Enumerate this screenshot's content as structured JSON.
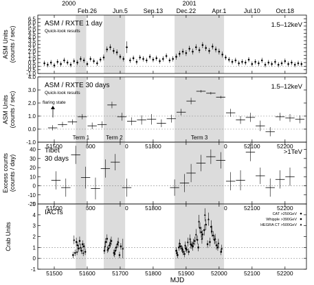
{
  "x_axis": {
    "label": "MJD",
    "ticks": [
      51500,
      51600,
      51700,
      51800,
      51900,
      52000,
      52100,
      52200
    ],
    "top_year_labels": [
      {
        "text": "2000",
        "mjd": 51544
      },
      {
        "text": "2001",
        "mjd": 51910
      }
    ],
    "top_date_labels": [
      {
        "text": "Feb.26",
        "mjd": 51600
      },
      {
        "text": "Jun.5",
        "mjd": 51700
      },
      {
        "text": "Sep.13",
        "mjd": 51800
      },
      {
        "text": "Dec.22",
        "mjd": 51900
      },
      {
        "text": "Apr.1",
        "mjd": 52000
      },
      {
        "text": "Jul.10",
        "mjd": 52100
      },
      {
        "text": "Oct.18",
        "mjd": 52200
      }
    ]
  },
  "chart_data": [
    {
      "type": "scatter",
      "id": "asm1",
      "ylabel": "ASM Units (counts / sec)",
      "title": "ASM / RXTE  1 day",
      "subtitle": "Quick-look results",
      "energy": "1.5–12keV",
      "xlim": [
        51450,
        52265
      ],
      "ylim": [
        -1.0,
        7.0
      ],
      "yticks": [
        -1.0,
        -0.5,
        0.0,
        0.5,
        1.0,
        1.5,
        2.0,
        2.5,
        3.0,
        3.5,
        4.0,
        4.5,
        5.0,
        5.5,
        6.0,
        6.5
      ],
      "ytick_labels": [
        "-1.0",
        "-0.5",
        "0.0",
        "0.5",
        "1.0",
        "1.5",
        "2.0",
        "2.5",
        "3.0",
        "3.5",
        "4.0",
        "4.5",
        "5.0",
        "5.5",
        "6.0",
        "6.5"
      ],
      "shaded_intervals": [
        [
          51565,
          51597
        ],
        [
          51650,
          51715
        ],
        [
          51865,
          52015
        ]
      ],
      "series": [
        {
          "name": "",
          "x": [
            51470,
            51480,
            51490,
            51500,
            51510,
            51520,
            51530,
            51540,
            51550,
            51560,
            51570,
            51580,
            51590,
            51600,
            51610,
            51620,
            51630,
            51640,
            51650,
            51660,
            51670,
            51680,
            51690,
            51700,
            51710,
            51720,
            51730,
            51740,
            51750,
            51760,
            51770,
            51780,
            51790,
            51800,
            51810,
            51820,
            51830,
            51840,
            51850,
            51860,
            51870,
            51880,
            51890,
            51900,
            51910,
            51920,
            51930,
            51940,
            51950,
            51960,
            51970,
            51980,
            51990,
            52000,
            52010,
            52020,
            52030,
            52040,
            52050,
            52060,
            52070,
            52080,
            52090,
            52100,
            52110,
            52120,
            52130,
            52140,
            52150,
            52160,
            52170,
            52180,
            52190,
            52200,
            52210,
            52220,
            52230,
            52240,
            52250
          ],
          "y": [
            0.4,
            0.2,
            0.5,
            0.1,
            0.6,
            0.3,
            0.8,
            0.5,
            0.2,
            0.7,
            0.5,
            1.0,
            0.8,
            0.3,
            1.0,
            0.7,
            0.4,
            0.9,
            1.2,
            2.3,
            2.6,
            2.1,
            1.9,
            1.3,
            1.0,
            2.6,
            0.8,
            1.1,
            0.6,
            1.2,
            1.0,
            0.8,
            1.3,
            0.9,
            1.1,
            0.7,
            1.0,
            1.4,
            0.8,
            1.0,
            1.3,
            1.7,
            2.0,
            1.8,
            2.4,
            2.0,
            2.6,
            2.2,
            2.9,
            2.5,
            2.1,
            2.7,
            2.3,
            2.0,
            1.6,
            1.2,
            0.9,
            0.6,
            0.8,
            0.4,
            0.6,
            0.5,
            0.9,
            0.3,
            0.6,
            0.4,
            0.8,
            0.2,
            0.5,
            0.3,
            0.6,
            0.2,
            0.4,
            0.7,
            0.3,
            0.5,
            0.2,
            0.4,
            0.3
          ],
          "yerr": [
            0.35,
            0.35,
            0.35,
            0.35,
            0.35,
            0.35,
            0.35,
            0.35,
            0.35,
            0.35,
            0.35,
            0.35,
            0.35,
            0.35,
            0.35,
            0.35,
            0.35,
            0.35,
            0.4,
            0.4,
            0.4,
            0.4,
            0.4,
            0.35,
            0.35,
            0.8,
            0.35,
            0.35,
            0.35,
            0.35,
            0.35,
            0.35,
            0.35,
            0.35,
            0.35,
            0.35,
            0.35,
            0.35,
            0.35,
            0.35,
            0.4,
            0.4,
            0.4,
            0.4,
            0.4,
            0.4,
            0.4,
            0.4,
            0.4,
            0.4,
            0.4,
            0.4,
            0.4,
            0.4,
            0.4,
            0.35,
            0.35,
            0.35,
            0.35,
            0.35,
            0.35,
            0.35,
            0.35,
            0.35,
            0.35,
            0.35,
            0.35,
            0.35,
            0.35,
            0.35,
            0.35,
            0.35,
            0.35,
            0.35,
            0.35,
            0.35,
            0.35,
            0.35,
            0.35
          ]
        }
      ],
      "reference_lines": [
        0.0
      ]
    },
    {
      "type": "scatter",
      "id": "asm30",
      "ylabel": "ASM Units (counts / sec)",
      "title": "ASM / RXTE  30 days",
      "subtitle": "Quick-look results",
      "energy": "1.5–12keV",
      "annotation": "flaring state",
      "terms": [
        {
          "text": "Term 1",
          "mjd": 51581
        },
        {
          "text": "Term 2",
          "mjd": 51682
        },
        {
          "text": "Term 3",
          "mjd": 51940
        }
      ],
      "xlim": [
        51450,
        52265
      ],
      "ylim": [
        -1.0,
        4.0
      ],
      "yticks": [
        -1,
        0,
        1,
        2,
        3,
        4
      ],
      "ytick_labels": [
        "-1.0",
        "0.0",
        "1.0",
        "2.0",
        "3.0",
        "4.0"
      ],
      "shaded_intervals": [
        [
          51565,
          51597
        ],
        [
          51650,
          51715
        ],
        [
          51865,
          52015
        ]
      ],
      "series": [
        {
          "name": "",
          "x": [
            51495,
            51525,
            51555,
            51585,
            51615,
            51645,
            51675,
            51705,
            51735,
            51765,
            51795,
            51825,
            51855,
            51885,
            51915,
            51945,
            51975,
            52005,
            52035,
            52065,
            52095,
            52125,
            52155,
            52185,
            52215,
            52245
          ],
          "y": [
            0.1,
            0.35,
            0.55,
            0.95,
            0.25,
            0.35,
            1.85,
            0.95,
            0.6,
            0.7,
            0.75,
            0.45,
            0.8,
            1.3,
            2.15,
            2.9,
            2.75,
            2.45,
            1.25,
            0.7,
            0.9,
            0.25,
            -0.2,
            0.95,
            0.85,
            0.75
          ],
          "yerr": [
            0.2,
            0.2,
            0.2,
            0.2,
            0.25,
            0.25,
            0.25,
            0.3,
            0.3,
            0.35,
            0.4,
            0.3,
            0.3,
            0.25,
            0.25,
            0.1,
            0.1,
            0.1,
            0.3,
            0.3,
            0.35,
            0.4,
            0.35,
            0.3,
            0.3,
            0.3
          ]
        }
      ],
      "reference_lines": [
        0.0,
        1.0
      ]
    },
    {
      "type": "scatter",
      "id": "tibet",
      "ylabel": "Excess counts (counts / day)",
      "title": "Tibet",
      "subtitle": "30 days",
      "energy": ">1TeV",
      "xlim": [
        51450,
        52265
      ],
      "ylim": [
        -20,
        48
      ],
      "yticks": [
        -20,
        -10,
        0,
        10,
        20,
        30,
        40
      ],
      "ytick_labels": [
        "-20",
        "-10",
        "0",
        "10",
        "20",
        "30",
        "40"
      ],
      "shaded_intervals": [
        [
          51565,
          51597
        ],
        [
          51650,
          51715
        ],
        [
          51865,
          52015
        ]
      ],
      "series": [
        {
          "name": "",
          "x": [
            51505,
            51535,
            51565,
            51595,
            51625,
            51655,
            51685,
            51720,
            51865,
            51895,
            51915,
            51945,
            51975,
            52005,
            52035,
            52065,
            52095,
            52125,
            52155,
            52185,
            52215
          ],
          "y": [
            6,
            -2,
            34,
            9,
            -3,
            19,
            26,
            -2,
            -2,
            3,
            14,
            25,
            32,
            28,
            5,
            6,
            37,
            11,
            -2,
            7,
            10
          ],
          "yerr": [
            10,
            10,
            10,
            12,
            12,
            10,
            9,
            10,
            9,
            10,
            10,
            9,
            8,
            9,
            10,
            11,
            10,
            9,
            10,
            10,
            10
          ]
        }
      ],
      "reference_lines": [
        0
      ]
    },
    {
      "type": "scatter",
      "id": "iacts",
      "ylabel": "Crab Units",
      "title": "IACTs",
      "xlim": [
        51450,
        52265
      ],
      "ylim": [
        -1.0,
        5.0
      ],
      "yticks": [
        -1,
        0,
        1,
        2,
        3,
        4,
        5
      ],
      "ytick_labels": [
        "-1",
        "0",
        "1",
        "2",
        "3",
        "4",
        "5"
      ],
      "shaded_intervals": [
        [
          51565,
          51597
        ],
        [
          51650,
          51715
        ],
        [
          51865,
          52015
        ]
      ],
      "series": [
        {
          "name": "CAT >250GeV",
          "marker": "circle",
          "x": [
            51563,
            51571,
            51577,
            51586,
            51594,
            51652,
            51660,
            51668,
            51681,
            51688,
            51698,
            51870,
            51878,
            51887,
            51895,
            51902,
            51914,
            51920,
            51934,
            51942,
            51950,
            51960,
            51972,
            51982,
            51992
          ],
          "y": [
            0.5,
            1.2,
            1.6,
            1.3,
            0.6,
            0.7,
            1.8,
            1.2,
            0.5,
            1.0,
            0.3,
            0.7,
            1.0,
            0.9,
            0.4,
            0.8,
            1.3,
            1.1,
            1.7,
            2.8,
            2.2,
            3.1,
            1.5,
            2.1,
            1.2
          ],
          "yerr": [
            0.3,
            0.3,
            0.4,
            0.35,
            0.3,
            0.3,
            0.4,
            0.3,
            0.3,
            0.3,
            0.3,
            0.3,
            0.3,
            0.3,
            0.3,
            0.3,
            0.4,
            0.4,
            0.4,
            0.5,
            0.4,
            0.5,
            0.4,
            0.4,
            0.4
          ]
        },
        {
          "name": "Whipple >390GeV",
          "marker": "square",
          "x": [
            51557,
            51567,
            51574,
            51583,
            51590,
            51656,
            51664,
            51673,
            51685,
            51692,
            51702,
            51874,
            51883,
            51891,
            51899,
            51908,
            51917,
            51926,
            51937,
            51946,
            51955,
            51965,
            51976,
            51986,
            51996,
            52006
          ],
          "y": [
            0.3,
            1.5,
            0.9,
            0.7,
            1.1,
            1.5,
            0.9,
            1.6,
            0.7,
            1.3,
            1.1,
            0.3,
            1.1,
            0.6,
            0.9,
            0.6,
            1.2,
            1.6,
            1.0,
            2.4,
            2.6,
            1.3,
            2.9,
            1.7,
            1.0,
            0.6
          ],
          "yerr": [
            0.3,
            0.4,
            0.3,
            0.3,
            0.3,
            0.35,
            0.3,
            0.4,
            0.3,
            0.3,
            0.3,
            0.3,
            0.3,
            0.3,
            0.3,
            0.3,
            0.35,
            0.4,
            0.35,
            0.5,
            0.5,
            0.35,
            0.6,
            0.4,
            0.3,
            0.3
          ]
        },
        {
          "name": "HEGRA CT >500GeV",
          "marker": "triangle",
          "x": [
            51560,
            51569,
            51580,
            51588,
            51654,
            51662,
            51670,
            51683,
            51694,
            51708,
            51872,
            51880,
            51889,
            51897,
            51905,
            51912,
            51922,
            51930,
            51939,
            51948,
            51957,
            51968,
            51978,
            51988,
            51998,
            52008
          ],
          "y": [
            1.7,
            0.6,
            1.0,
            0.5,
            1.1,
            0.8,
            1.4,
            0.4,
            1.5,
            0.9,
            0.5,
            1.4,
            0.8,
            1.2,
            1.5,
            1.8,
            1.4,
            2.2,
            3.4,
            1.8,
            4.0,
            3.6,
            2.5,
            1.8,
            1.4,
            0.9
          ],
          "yerr": [
            0.4,
            0.3,
            0.35,
            0.3,
            0.35,
            0.3,
            0.4,
            0.3,
            0.4,
            0.9,
            0.3,
            0.35,
            0.3,
            0.35,
            0.4,
            0.4,
            0.4,
            0.5,
            0.6,
            0.45,
            0.6,
            0.6,
            0.5,
            0.45,
            0.4,
            0.35
          ]
        }
      ],
      "reference_lines": [
        0,
        1
      ]
    }
  ]
}
